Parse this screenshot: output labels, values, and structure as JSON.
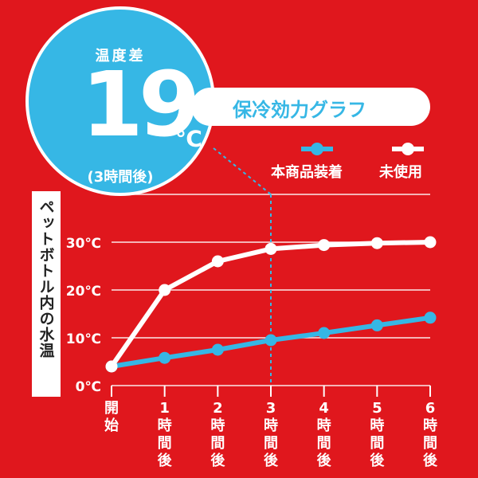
{
  "badge": {
    "top_label": "温度差",
    "value": "19",
    "unit": "℃",
    "note": "(3時間後)"
  },
  "chart_data": {
    "type": "line",
    "title": "保冷効力グラフ",
    "ylabel": "ペットボトル内の水温",
    "categories": [
      "開始",
      "1時間後",
      "2時間後",
      "3時間後",
      "4時間後",
      "5時間後",
      "6時間後"
    ],
    "y_ticks": [
      "0℃",
      "10℃",
      "20℃",
      "30℃"
    ],
    "ylim": [
      0,
      40
    ],
    "grid": true,
    "legend_position": "top-right",
    "highlight_x": "3時間後",
    "series": [
      {
        "name": "本商品装着",
        "color": "#36b7e5",
        "values": [
          4,
          5.8,
          7.5,
          9.5,
          11,
          12.6,
          14.2
        ]
      },
      {
        "name": "未使用",
        "color": "#ffffff",
        "values": [
          4,
          20,
          26,
          28.6,
          29.4,
          29.8,
          30
        ]
      }
    ]
  }
}
